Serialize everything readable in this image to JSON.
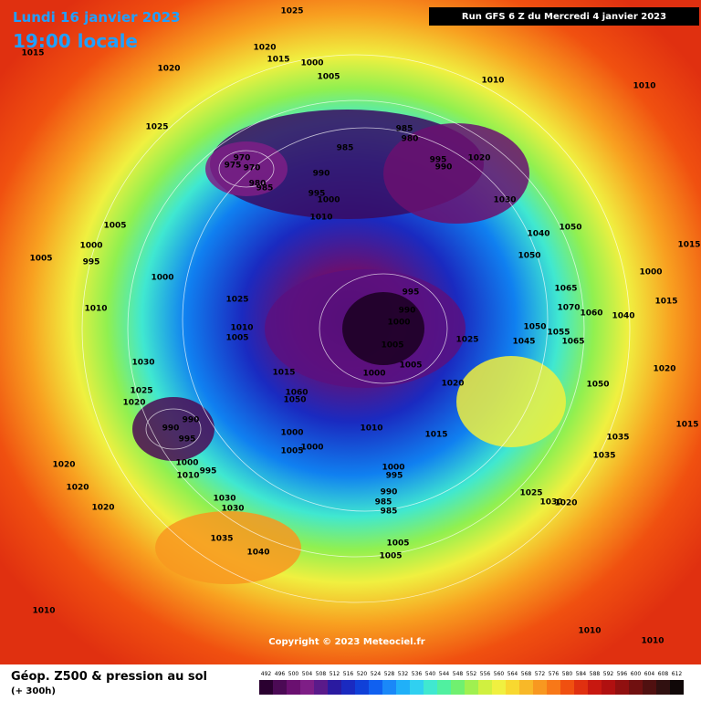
{
  "header": {
    "date": "Lundi 16 janvier 2023",
    "time": "19:00 locale",
    "run": "Run GFS 6 Z du Mercredi 4 janvier 2023"
  },
  "map": {
    "copyright": "Copyright © 2023 Meteociel.fr",
    "pressure_labels": [
      "1025",
      "1015",
      "1020",
      "1015",
      "1000",
      "1020",
      "1005",
      "1010",
      "1010",
      "1025",
      "985",
      "980",
      "985",
      "970",
      "975",
      "970",
      "995",
      "990",
      "1020",
      "990",
      "980",
      "985",
      "995",
      "1000",
      "1030",
      "1010",
      "1005",
      "1050",
      "1040",
      "1000",
      "1015",
      "995",
      "1005",
      "1050",
      "1000",
      "1000",
      "1065",
      "1025",
      "995",
      "1015",
      "1070",
      "990",
      "1060",
      "1010",
      "1040",
      "1000",
      "1010",
      "1050",
      "1055",
      "1005",
      "1045",
      "1065",
      "1025",
      "1005",
      "1030",
      "1005",
      "1000",
      "1020",
      "1015",
      "1060",
      "1050",
      "1025",
      "1020",
      "1050",
      "1020",
      "990",
      "1010",
      "1015",
      "1015",
      "1000",
      "990",
      "995",
      "1035",
      "1005",
      "1000",
      "1000",
      "1035",
      "995",
      "1000",
      "995",
      "1010",
      "1020",
      "1020",
      "990",
      "1025",
      "1030",
      "1030",
      "985",
      "1020",
      "985",
      "1020",
      "1030",
      "1035",
      "1040",
      "1005",
      "1005",
      "1010",
      "1010",
      "1010"
    ]
  },
  "legend": {
    "title": "Géop. Z500 & pression au sol",
    "subtitle": "(+ 300h)",
    "levels": [
      492,
      496,
      500,
      504,
      508,
      512,
      516,
      520,
      524,
      528,
      532,
      536,
      540,
      544,
      548,
      552,
      556,
      560,
      564,
      568,
      572,
      576,
      580,
      584,
      588,
      592,
      596,
      600,
      604,
      608,
      612
    ],
    "colors": [
      "#2a0030",
      "#4b0a55",
      "#6a1070",
      "#7e1e86",
      "#5a1a8a",
      "#2a1aa0",
      "#1a2ac0",
      "#1040d8",
      "#1060f0",
      "#1a88f8",
      "#20b0f8",
      "#30d0f0",
      "#40e8d0",
      "#50f0a0",
      "#70f070",
      "#a0f050",
      "#d0f040",
      "#f0f040",
      "#f8d830",
      "#f8b828",
      "#f89820",
      "#f87818",
      "#f05010",
      "#e03010",
      "#c81810",
      "#b01010",
      "#901010",
      "#701010",
      "#501010",
      "#301010",
      "#100808"
    ]
  }
}
